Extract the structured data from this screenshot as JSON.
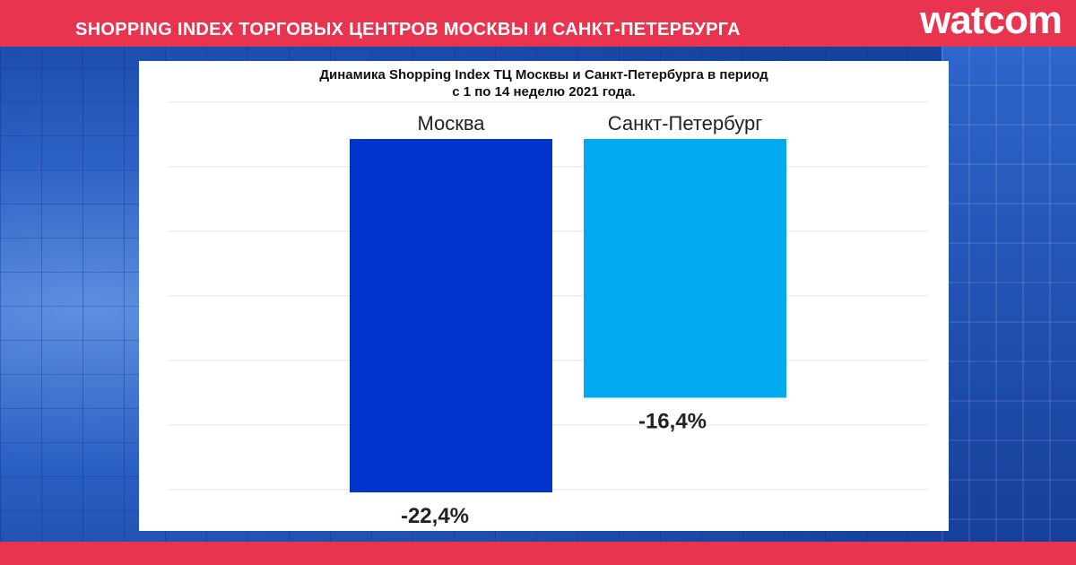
{
  "header": {
    "title": "SHOPPING INDEX ТОРГОВЫХ ЦЕНТРОВ МОСКВЫ И САНКТ-ПЕТЕРБУРГА",
    "logo": "watcom"
  },
  "colors": {
    "accent": "#e8344e",
    "series_moscow": "#0033cc",
    "series_spb": "#00aaee"
  },
  "chart_data": {
    "type": "bar",
    "title_line1": "Динамика Shopping Index ТЦ Москвы и Санкт-Петербурга в период",
    "title_line2": "с 1 по 14 неделю 2021 года.",
    "categories": [
      "Москва",
      "Санкт-Петербург"
    ],
    "values": [
      -22.4,
      -16.4
    ],
    "value_labels": [
      "-22,4%",
      "-16,4%"
    ],
    "colors": [
      "#0033cc",
      "#00aaee"
    ],
    "ylim": [
      -22.4,
      0
    ],
    "grid": true
  }
}
